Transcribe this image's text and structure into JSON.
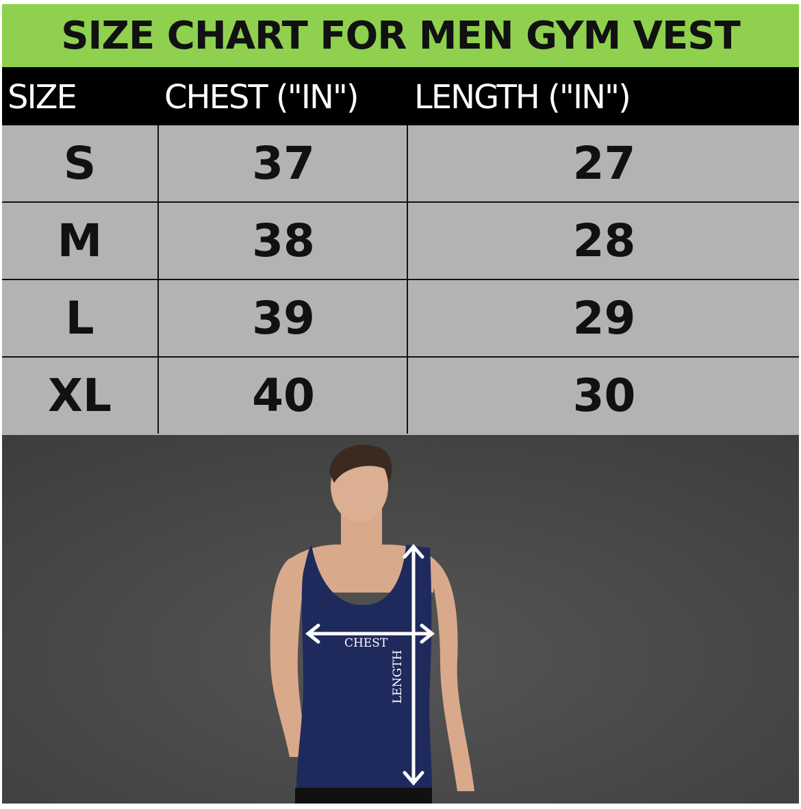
{
  "title": "SIZE CHART FOR MEN GYM VEST",
  "table": {
    "headers": [
      "SIZE",
      "CHEST (\"IN\")",
      "LENGTH (\"IN\")"
    ],
    "rows": [
      {
        "size": "S",
        "chest": "37",
        "length": "27"
      },
      {
        "size": "M",
        "chest": "38",
        "length": "28"
      },
      {
        "size": "L",
        "chest": "39",
        "length": "29"
      },
      {
        "size": "XL",
        "chest": "40",
        "length": "30"
      }
    ]
  },
  "image": {
    "chest_label": "CHEST",
    "length_label": "LENGTH"
  },
  "colors": {
    "title_bg": "#8fd14f",
    "header_bg": "#000000",
    "cell_bg": "#b3b3b3",
    "vest": "#1f2a5c",
    "wall": "#4a4a4a"
  }
}
